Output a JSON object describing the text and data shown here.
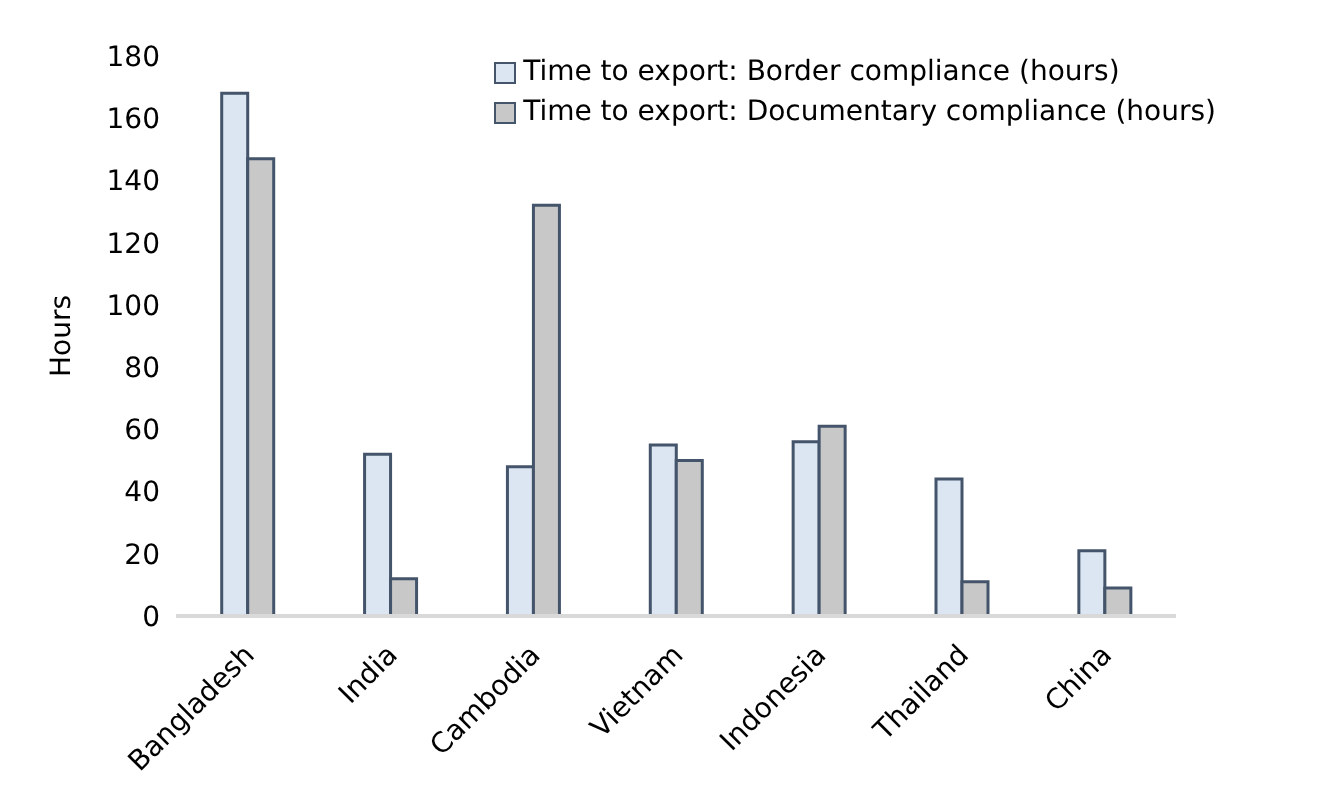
{
  "chart_data": {
    "type": "bar",
    "ylabel": "Hours",
    "categories": [
      "Bangladesh",
      "India",
      "Cambodia",
      "Vietnam",
      "Indonesia",
      "Thailand",
      "China"
    ],
    "series": [
      {
        "name": "Time to export: Border compliance (hours)",
        "color": "#dce6f2",
        "values": [
          168,
          52,
          48,
          55,
          56,
          44,
          21
        ]
      },
      {
        "name": "Time to export: Documentary compliance (hours)",
        "color": "#c8c8c8",
        "values": [
          147,
          12,
          132,
          50,
          61,
          11,
          9
        ]
      }
    ],
    "ylim": [
      0,
      180
    ],
    "yticks": [
      0,
      20,
      40,
      60,
      80,
      100,
      120,
      140,
      160,
      180
    ],
    "grid": false,
    "legend": "top right"
  }
}
